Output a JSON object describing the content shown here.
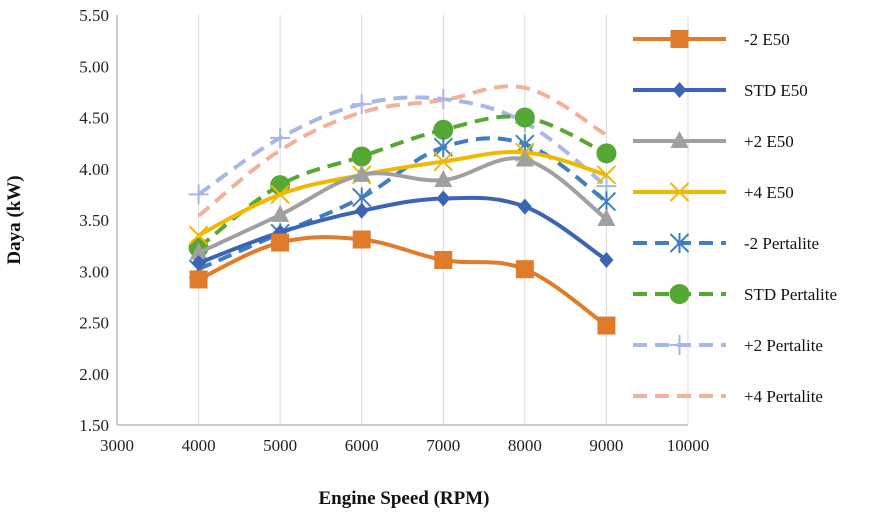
{
  "chart_data": {
    "type": "line",
    "xlabel": "Engine Speed (RPM)",
    "ylabel": "Daya (kW)",
    "xlim": [
      3000,
      10000
    ],
    "ylim": [
      1.5,
      5.5
    ],
    "xticks": [
      "3000",
      "4000",
      "5000",
      "6000",
      "7000",
      "8000",
      "9000",
      "10000"
    ],
    "yticks": [
      "1.50",
      "2.00",
      "2.50",
      "3.00",
      "3.50",
      "4.00",
      "4.50",
      "5.00",
      "5.50"
    ],
    "grid": "vertical",
    "legend_position": "right",
    "x": [
      4000,
      5000,
      6000,
      7000,
      8000,
      9000
    ],
    "series": [
      {
        "name": "-2 E50",
        "color": "#E07B2A",
        "dash": false,
        "marker": "square",
        "values": [
          2.92,
          3.28,
          3.31,
          3.11,
          3.02,
          2.47
        ]
      },
      {
        "name": "STD E50",
        "color": "#3C64B4",
        "dash": false,
        "marker": "diamond",
        "values": [
          3.08,
          3.38,
          3.59,
          3.71,
          3.63,
          3.11
        ]
      },
      {
        "name": "+2 E50",
        "color": "#A0A0A0",
        "dash": false,
        "marker": "triangle",
        "values": [
          3.18,
          3.55,
          3.94,
          3.89,
          4.09,
          3.51
        ]
      },
      {
        "name": "+4 E50",
        "color": "#F2B800",
        "dash": false,
        "marker": "x",
        "values": [
          3.35,
          3.75,
          3.94,
          4.07,
          4.16,
          3.94
        ]
      },
      {
        "name": "-2 Pertalite",
        "color": "#3F7FC0",
        "dash": true,
        "marker": "star",
        "values": [
          3.02,
          3.37,
          3.72,
          4.21,
          4.24,
          3.68
        ]
      },
      {
        "name": "STD Pertalite",
        "color": "#56A834",
        "dash": true,
        "marker": "circle",
        "values": [
          3.23,
          3.84,
          4.12,
          4.38,
          4.5,
          4.15
        ]
      },
      {
        "name": "+2 Pertalite",
        "color": "#A7B8E6",
        "dash": true,
        "marker": "plus",
        "values": [
          3.75,
          4.3,
          4.63,
          4.68,
          4.45,
          3.83
        ]
      },
      {
        "name": "+4 Pertalite",
        "color": "#F4B099",
        "dash": true,
        "marker": "none",
        "values": [
          3.54,
          4.18,
          4.55,
          4.67,
          4.79,
          4.33
        ]
      }
    ]
  }
}
